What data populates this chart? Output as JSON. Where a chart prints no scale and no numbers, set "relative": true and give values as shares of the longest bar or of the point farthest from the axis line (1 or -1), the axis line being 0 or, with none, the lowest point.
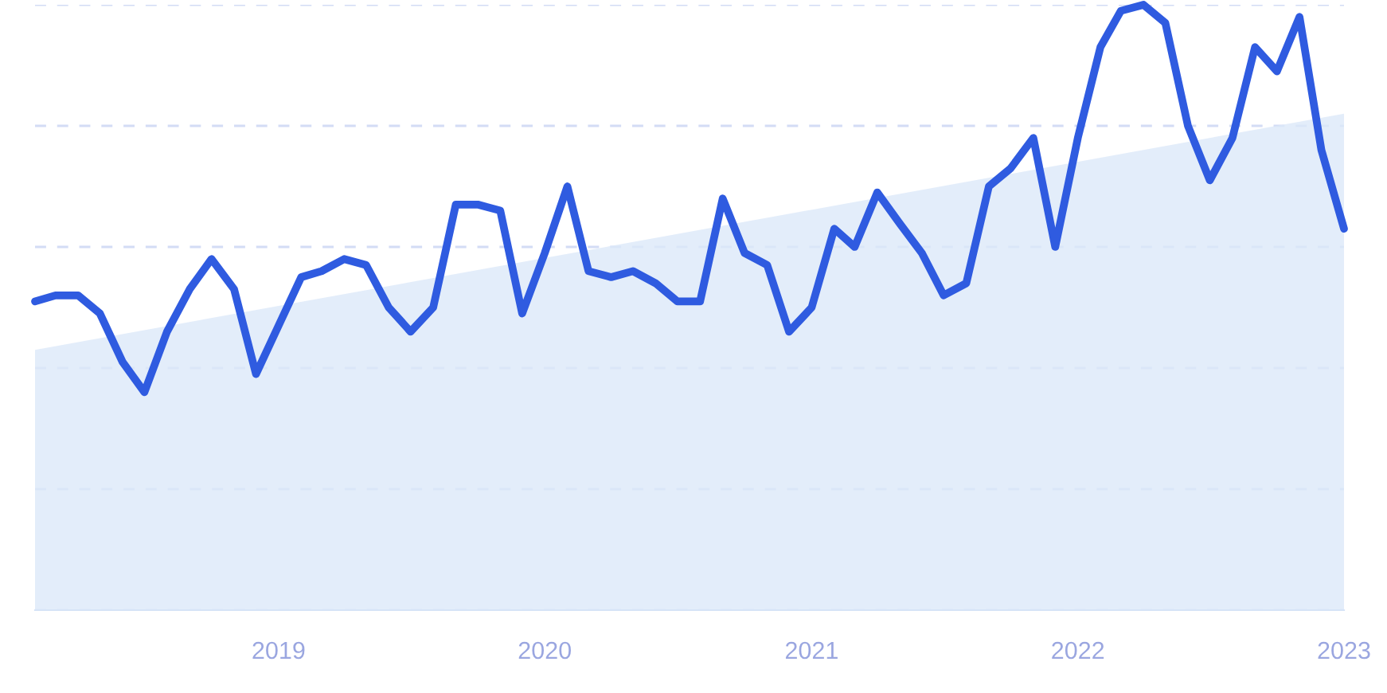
{
  "chart_data": {
    "type": "line",
    "relative": true,
    "grid": "y",
    "legend": false,
    "x": [
      "2018-02",
      "2018-03",
      "2018-04",
      "2018-05",
      "2018-06",
      "2018-07",
      "2018-08",
      "2018-09",
      "2018-10",
      "2018-11",
      "2018-12",
      "2019-01",
      "2019-02",
      "2019-03",
      "2019-04",
      "2019-05",
      "2019-06",
      "2019-07",
      "2019-08",
      "2019-09",
      "2019-10",
      "2019-11",
      "2019-12",
      "2020-01",
      "2020-02",
      "2020-03",
      "2020-04",
      "2020-05",
      "2020-06",
      "2020-07",
      "2020-08",
      "2020-09",
      "2020-10",
      "2020-11",
      "2020-12",
      "2021-01",
      "2021-02",
      "2021-03",
      "2021-04",
      "2021-05",
      "2021-06",
      "2021-07",
      "2021-08",
      "2021-09",
      "2021-10",
      "2021-11",
      "2021-12",
      "2022-01",
      "2022-02",
      "2022-03",
      "2022-04",
      "2022-05",
      "2022-06",
      "2022-07",
      "2022-08",
      "2022-09",
      "2022-10",
      "2022-11",
      "2022-12",
      "2023-01"
    ],
    "xlim": [
      "2018-02",
      "2023-01"
    ],
    "xticks": [
      {
        "value": "2019-01",
        "label": "2019"
      },
      {
        "value": "2020-01",
        "label": "2020"
      },
      {
        "value": "2021-01",
        "label": "2021"
      },
      {
        "value": "2022-01",
        "label": "2022"
      },
      {
        "value": "2023-01",
        "label": "2023"
      }
    ],
    "series": [
      {
        "type": "area",
        "color": "#dce9f9",
        "x": [
          "2018-02",
          "2023-01"
        ],
        "values": [
          0.43,
          0.82
        ]
      },
      {
        "color": "#2f5be0",
        "values": [
          0.51,
          0.52,
          0.52,
          0.49,
          0.41,
          0.36,
          0.46,
          0.53,
          0.58,
          0.53,
          0.39,
          0.47,
          0.55,
          0.56,
          0.58,
          0.57,
          0.5,
          0.46,
          0.5,
          0.67,
          0.67,
          0.66,
          0.49,
          0.59,
          0.7,
          0.56,
          0.55,
          0.56,
          0.54,
          0.51,
          0.51,
          0.68,
          0.59,
          0.57,
          0.46,
          0.5,
          0.63,
          0.6,
          0.69,
          0.64,
          0.59,
          0.52,
          0.54,
          0.7,
          0.73,
          0.78,
          0.6,
          0.78,
          0.93,
          0.99,
          1,
          0.97,
          0.8,
          0.71,
          0.78,
          0.93,
          0.89,
          0.98,
          0.76,
          0.63
        ]
      }
    ]
  }
}
